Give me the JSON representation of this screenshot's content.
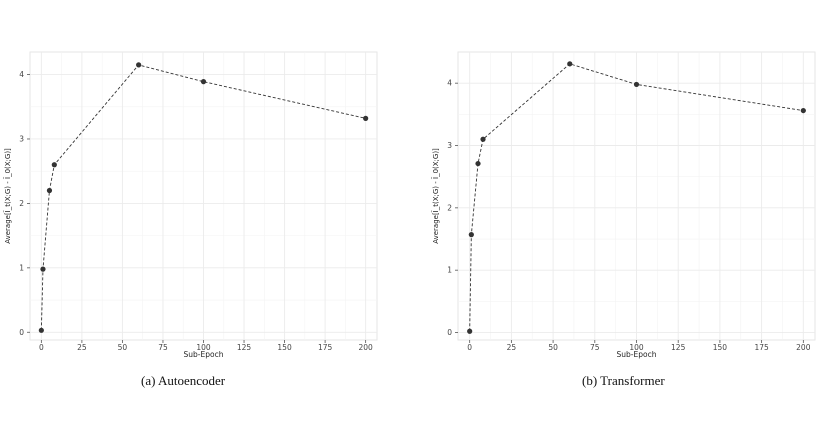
{
  "chart_data": [
    {
      "type": "line",
      "caption": "(a)  Autoencoder",
      "xlabel": "Sub-Epoch",
      "ylabel": "Average[Ĩ_t(X;G) - Ĩ_0(X;G)]",
      "xlim": [
        -7,
        207
      ],
      "ylim": [
        -0.12,
        4.35
      ],
      "xticks": [
        0,
        25,
        50,
        75,
        100,
        125,
        150,
        175,
        200
      ],
      "yticks": [
        0,
        1,
        2,
        3,
        4
      ],
      "grid": true,
      "x": [
        0,
        1,
        5,
        8,
        60,
        100,
        200
      ],
      "y": [
        0.03,
        0.98,
        2.2,
        2.6,
        4.15,
        3.89,
        3.32
      ],
      "marker_color": "#333333",
      "line_style": "dashed"
    },
    {
      "type": "line",
      "caption": "(b)  Transformer",
      "xlabel": "Sub-Epoch",
      "ylabel": "Average[Ĩ_t(X;G) - Ĩ_0(X;G)]",
      "xlim": [
        -7,
        207
      ],
      "ylim": [
        -0.12,
        4.5
      ],
      "xticks": [
        0,
        25,
        50,
        75,
        100,
        125,
        150,
        175,
        200
      ],
      "yticks": [
        0,
        1,
        2,
        3,
        4
      ],
      "grid": true,
      "x": [
        0,
        1,
        5,
        8,
        60,
        100,
        200
      ],
      "y": [
        0.02,
        1.57,
        2.71,
        3.1,
        4.31,
        3.98,
        3.56
      ],
      "marker_color": "#333333",
      "line_style": "dashed"
    }
  ]
}
